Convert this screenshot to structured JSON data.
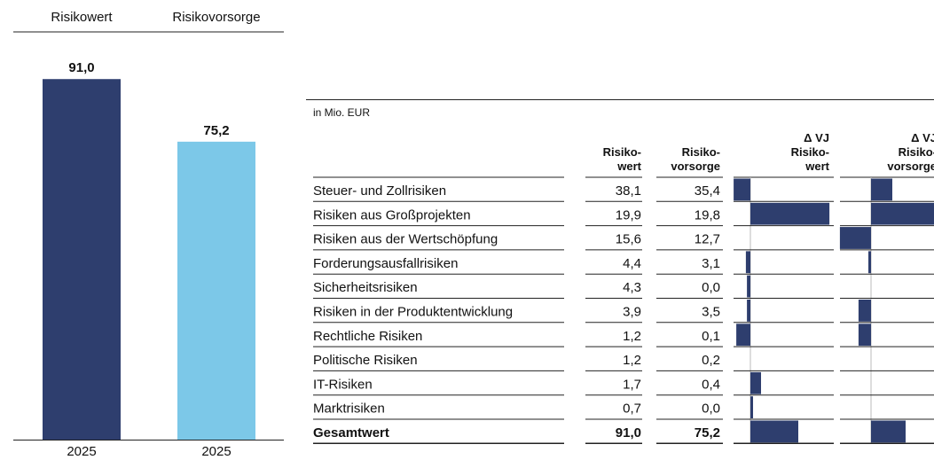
{
  "chart_data": {
    "type": "bar",
    "names": [
      "Risikowert",
      "Risikovorsorge"
    ],
    "categories": [
      "2025",
      "2025"
    ],
    "values": [
      91.0,
      75.2
    ],
    "value_labels": [
      "91,0",
      "75,2"
    ],
    "colors": [
      "#2e3e6e",
      "#7cc8e8"
    ],
    "ylim": [
      0,
      100
    ]
  },
  "table": {
    "unit": "in Mio. EUR",
    "headers": [
      [
        "Risiko-",
        "wert"
      ],
      [
        "Risiko-",
        "vorsorge"
      ],
      [
        "Δ VJ",
        "Risiko-",
        "wert"
      ],
      [
        "Δ VJ",
        "Risiko-",
        "vorsorge"
      ]
    ],
    "delta_color": "#2e3e6e",
    "rows": [
      {
        "label": "Steuer- und Zollrisiken",
        "risikowert": "38,1",
        "risikovorsorge": "35,4",
        "delta_risikowert": -6.3,
        "delta_risikovorsorge": 8.0
      },
      {
        "label": "Risiken aus Großprojekten",
        "risikowert": "19,9",
        "risikovorsorge": "19,8",
        "delta_risikowert": 29.7,
        "delta_risikovorsorge": 25.0
      },
      {
        "label": "Risiken aus der Wertschöpfung",
        "risikowert": "15,6",
        "risikovorsorge": "12,7",
        "delta_risikowert": 0,
        "delta_risikovorsorge": -11.7
      },
      {
        "label": "Forderungsausfallrisiken",
        "risikowert": "4,4",
        "risikovorsorge": "3,1",
        "delta_risikowert": -1.7,
        "delta_risikovorsorge": -1.0
      },
      {
        "label": "Sicherheitsrisiken",
        "risikowert": "4,3",
        "risikovorsorge": "0,0",
        "delta_risikowert": -1.3,
        "delta_risikovorsorge": 0
      },
      {
        "label": "Risiken in der Produktentwicklung",
        "risikowert": "3,9",
        "risikovorsorge": "3,5",
        "delta_risikowert": -1.3,
        "delta_risikovorsorge": -4.7
      },
      {
        "label": "Rechtliche Risiken",
        "risikowert": "1,2",
        "risikovorsorge": "0,1",
        "delta_risikowert": -5.3,
        "delta_risikovorsorge": -4.7
      },
      {
        "label": "Politische Risiken",
        "risikowert": "1,2",
        "risikovorsorge": "0,2",
        "delta_risikowert": 0,
        "delta_risikovorsorge": 0
      },
      {
        "label": "IT-Risiken",
        "risikowert": "1,7",
        "risikovorsorge": "0,4",
        "delta_risikowert": 4.0,
        "delta_risikovorsorge": 0
      },
      {
        "label": "Marktrisiken",
        "risikowert": "0,7",
        "risikovorsorge": "0,0",
        "delta_risikowert": 1.0,
        "delta_risikovorsorge": 0
      },
      {
        "label": "Gesamtwert",
        "risikowert": "91,0",
        "risikovorsorge": "75,2",
        "delta_risikowert": 18.0,
        "delta_risikovorsorge": 13.0
      }
    ]
  }
}
